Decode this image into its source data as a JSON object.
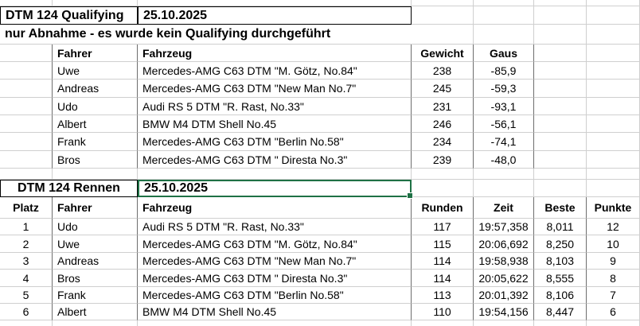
{
  "app": {
    "kind": "spreadsheet"
  },
  "colors": {
    "background": "#ffffff",
    "gridline": "#cfcfcf",
    "table_line": "#6e6e6e",
    "title_border": "#000000",
    "selection_green": "#1f7145",
    "text": "#000000"
  },
  "qualifying": {
    "title": "DTM 124 Qualifying",
    "date": "25.10.2025",
    "note": "nur Abnahme - es wurde kein Qualifying durchgeführt",
    "headers": {
      "fahrer": "Fahrer",
      "fahrzeug": "Fahrzeug",
      "gewicht": "Gewicht",
      "gaus": "Gaus"
    },
    "rows": [
      {
        "fahrer": "Uwe",
        "fahrzeug": "Mercedes-AMG C63 DTM \"M. Götz, No.84\"",
        "gewicht": "238",
        "gaus": "-85,9"
      },
      {
        "fahrer": "Andreas",
        "fahrzeug": "Mercedes-AMG C63 DTM \"New Man No.7\"",
        "gewicht": "245",
        "gaus": "-59,3"
      },
      {
        "fahrer": "Udo",
        "fahrzeug": "Audi RS 5 DTM \"R. Rast, No.33\"",
        "gewicht": "231",
        "gaus": "-93,1"
      },
      {
        "fahrer": "Albert",
        "fahrzeug": "BMW M4 DTM Shell No.45",
        "gewicht": "246",
        "gaus": "-56,1"
      },
      {
        "fahrer": "Frank",
        "fahrzeug": "Mercedes-AMG C63 DTM \"Berlin No.58\"",
        "gewicht": "234",
        "gaus": "-74,1"
      },
      {
        "fahrer": "Bros",
        "fahrzeug": "Mercedes-AMG C63 DTM \" Diresta No.3\"",
        "gewicht": "239",
        "gaus": "-48,0"
      }
    ]
  },
  "race": {
    "title": "DTM 124 Rennen",
    "date": "25.10.2025",
    "headers": {
      "platz": "Platz",
      "fahrer": "Fahrer",
      "fahrzeug": "Fahrzeug",
      "runden": "Runden",
      "zeit": "Zeit",
      "beste": "Beste",
      "punkte": "Punkte"
    },
    "rows": [
      {
        "platz": "1",
        "fahrer": "Udo",
        "fahrzeug": "Audi RS 5 DTM \"R. Rast, No.33\"",
        "runden": "117",
        "zeit": "19:57,358",
        "beste": "8,011",
        "punkte": "12"
      },
      {
        "platz": "2",
        "fahrer": "Uwe",
        "fahrzeug": "Mercedes-AMG C63 DTM \"M. Götz, No.84\"",
        "runden": "115",
        "zeit": "20:06,692",
        "beste": "8,250",
        "punkte": "10"
      },
      {
        "platz": "3",
        "fahrer": "Andreas",
        "fahrzeug": "Mercedes-AMG C63 DTM \"New Man No.7\"",
        "runden": "114",
        "zeit": "19:58,938",
        "beste": "8,103",
        "punkte": "9"
      },
      {
        "platz": "4",
        "fahrer": "Bros",
        "fahrzeug": "Mercedes-AMG C63 DTM \" Diresta No.3\"",
        "runden": "114",
        "zeit": "20:05,622",
        "beste": "8,555",
        "punkte": "8"
      },
      {
        "platz": "5",
        "fahrer": "Frank",
        "fahrzeug": "Mercedes-AMG C63 DTM \"Berlin No.58\"",
        "runden": "113",
        "zeit": "20:01,392",
        "beste": "8,106",
        "punkte": "7"
      },
      {
        "platz": "6",
        "fahrer": "Albert",
        "fahrzeug": "BMW M4 DTM Shell No.45",
        "runden": "110",
        "zeit": "19:54,156",
        "beste": "8,447",
        "punkte": "6"
      }
    ]
  },
  "selection": {
    "selected_cell_value": "25.10.2025"
  }
}
